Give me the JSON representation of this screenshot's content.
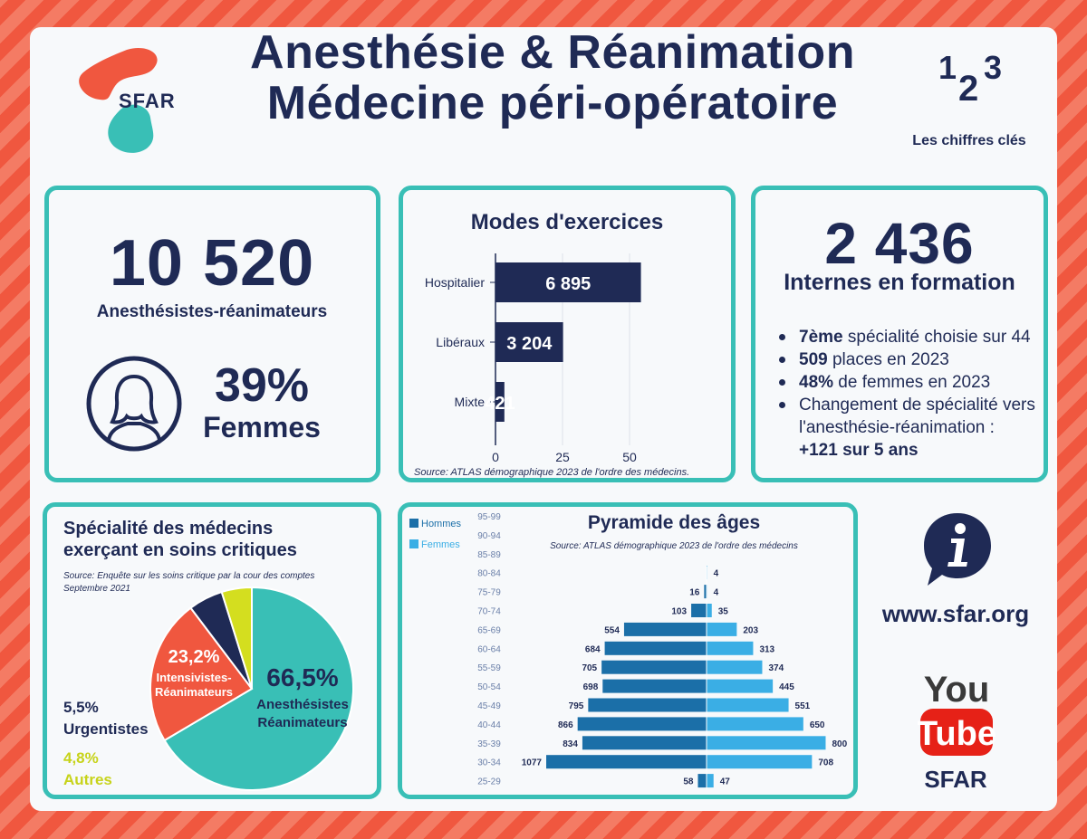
{
  "header": {
    "title_line1": "Anesthésie & Réanimation",
    "title_line2": "Médecine péri-opératoire",
    "logo_text": "SFAR",
    "chiffres_icon_digits": [
      "1",
      "2",
      "3"
    ],
    "chiffres_label": "Les chiffres clés"
  },
  "colors": {
    "navy": "#1f2a55",
    "teal": "#39bfb6",
    "coral": "#f0573f",
    "lime": "#d4de1f",
    "hommes": "#1b6fa8",
    "femmes": "#3aaee5"
  },
  "total": {
    "number": "10 520",
    "label": "Anesthésistes-réanimateurs",
    "women_pct": "39%",
    "women_label": "Femmes",
    "icon": "woman-avatar-icon"
  },
  "modes": {
    "title": "Modes d'exercices",
    "source": "Source: ATLAS démographique 2023 de l'ordre des médecins."
  },
  "internes": {
    "number": "2 436",
    "label": "Internes en formation",
    "bullets": [
      {
        "bold": "7ème",
        "text": " spécialité choisie sur 44"
      },
      {
        "bold": "509",
        "text": " places en 2023"
      },
      {
        "bold": "48%",
        "text": " de femmes en 2023"
      },
      {
        "bold": "",
        "text": "Changement de spécialité vers l'anesthésie-réanimation :"
      }
    ],
    "bullet4_bold": "+121 sur 5 ans"
  },
  "specialite": {
    "title_line1": "Spécialité des médecins",
    "title_line2": "exerçant en soins critiques",
    "source_line1": "Source: Enquête sur les soins critique par la cour des comptes",
    "source_line2": "Septembre 2021"
  },
  "pyramide": {
    "title": "Pyramide des âges",
    "source": "Source: ATLAS démographique 2023 de l'ordre des médecins"
  },
  "links": {
    "website": "www.sfar.org",
    "youtube_you": "You",
    "youtube_tube": "Tube",
    "youtube_label": "SFAR",
    "info_icon": "info-bubble-icon"
  },
  "chart_data": [
    {
      "type": "bar",
      "orientation": "horizontal",
      "title": "Modes d'exercices",
      "categories": [
        "Hospitalier",
        "Libéraux",
        "Mixte"
      ],
      "values": [
        6895,
        3204,
        421
      ],
      "value_labels": [
        "6 895",
        "3 204",
        "421"
      ],
      "axis_ticks": [
        "0",
        "25",
        "50"
      ],
      "grid": true
    },
    {
      "type": "pie",
      "title": "Spécialité des médecins exerçant en soins critiques",
      "slices": [
        {
          "label": "Anesthésistes Réanimateurs",
          "pct_label": "66,5%",
          "value": 66.5,
          "color": "#39bfb6"
        },
        {
          "label": "Intensivistes-Réanimateurs",
          "pct_label": "23,2%",
          "value": 23.2,
          "color": "#f0573f"
        },
        {
          "label": "Urgentistes",
          "pct_label": "5,5%",
          "value": 5.5,
          "color": "#1f2a55"
        },
        {
          "label": "Autres",
          "pct_label": "4,8%",
          "value": 4.8,
          "color": "#d4de1f"
        }
      ]
    },
    {
      "type": "bar",
      "orientation": "horizontal-diverging",
      "title": "Pyramide des âges",
      "legend": [
        "Hommes",
        "Femmes"
      ],
      "legend_position": "top-left",
      "categories": [
        "95-99",
        "90-94",
        "85-89",
        "80-84",
        "75-79",
        "70-74",
        "65-69",
        "60-64",
        "55-59",
        "50-54",
        "45-49",
        "40-44",
        "35-39",
        "30-34",
        "25-29"
      ],
      "series": [
        {
          "name": "Hommes",
          "values": [
            null,
            null,
            null,
            null,
            16,
            103,
            554,
            684,
            705,
            698,
            795,
            866,
            834,
            1077,
            58
          ]
        },
        {
          "name": "Femmes",
          "values": [
            null,
            null,
            null,
            4,
            4,
            35,
            203,
            313,
            374,
            445,
            551,
            650,
            800,
            708,
            47
          ]
        }
      ]
    }
  ]
}
